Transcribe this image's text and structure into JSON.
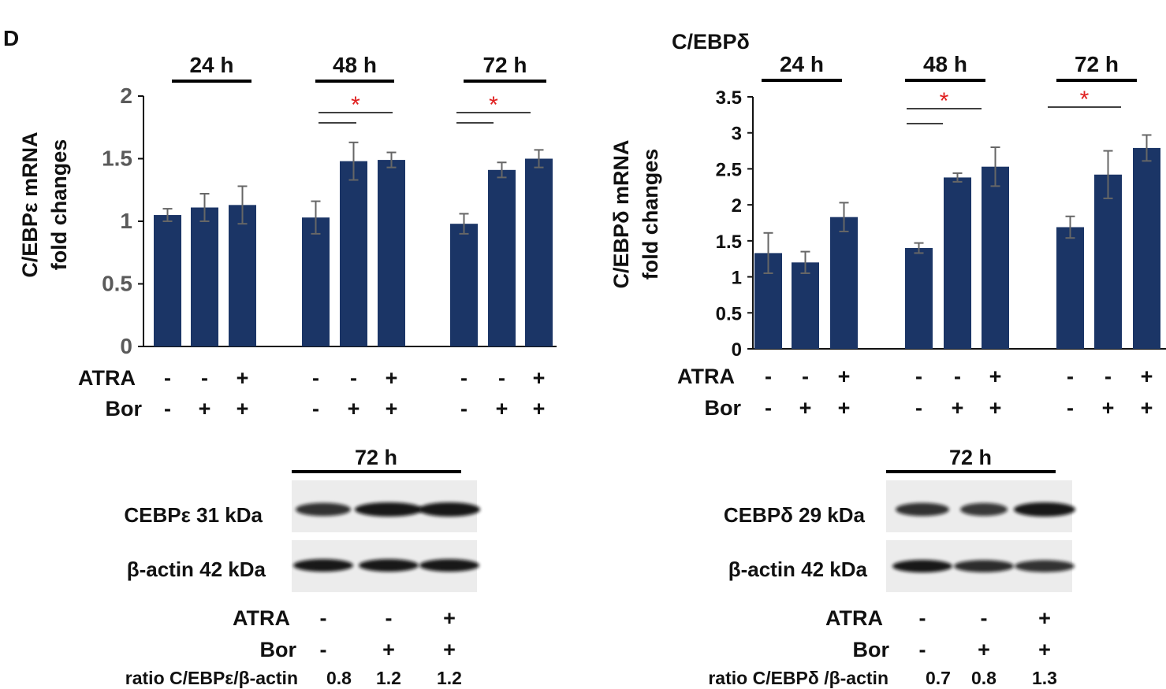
{
  "panel_letter": "D",
  "chart_data": [
    {
      "type": "bar",
      "title": "",
      "ylabel_line1": "C/EBPε mRNA",
      "ylabel_line2": "fold changes",
      "ylim": [
        0,
        2
      ],
      "yticks": [
        "0",
        "0.5",
        "1",
        "1.5",
        "2"
      ],
      "ytick_values": [
        0,
        0.5,
        1,
        1.5,
        2
      ],
      "bar_color": "#1b3566",
      "groups": [
        {
          "label": "24 h",
          "values": [
            1.05,
            1.11,
            1.13
          ],
          "errors": [
            0.05,
            0.11,
            0.15
          ],
          "atra": [
            "-",
            "-",
            "+"
          ],
          "bor": [
            "-",
            "+",
            "+"
          ]
        },
        {
          "label": "48 h",
          "values": [
            1.03,
            1.48,
            1.49
          ],
          "errors": [
            0.13,
            0.15,
            0.06
          ],
          "atra": [
            "-",
            "-",
            "+"
          ],
          "bor": [
            "-",
            "+",
            "+"
          ]
        },
        {
          "label": "72 h",
          "values": [
            0.98,
            1.41,
            1.5
          ],
          "errors": [
            0.08,
            0.06,
            0.07
          ],
          "atra": [
            "-",
            "-",
            "+"
          ],
          "bor": [
            "-",
            "+",
            "+"
          ]
        }
      ],
      "row_labels": {
        "atra": "ATRA",
        "bor": "Bor"
      },
      "significance": "*"
    },
    {
      "type": "bar",
      "title": "C/EBPδ",
      "ylabel_line1": "C/EBPδ mRNA",
      "ylabel_line2": "fold changes",
      "ylim": [
        0,
        3.5
      ],
      "yticks": [
        "0",
        "0.5",
        "1",
        "1.5",
        "2",
        "2.5",
        "3",
        "3.5"
      ],
      "ytick_values": [
        0,
        0.5,
        1,
        1.5,
        2,
        2.5,
        3,
        3.5
      ],
      "bar_color": "#1b3566",
      "groups": [
        {
          "label": "24 h",
          "values": [
            1.33,
            1.2,
            1.83
          ],
          "errors": [
            0.28,
            0.15,
            0.2
          ],
          "atra": [
            "-",
            "-",
            "+"
          ],
          "bor": [
            "-",
            "+",
            "+"
          ]
        },
        {
          "label": "48 h",
          "values": [
            1.4,
            2.38,
            2.53
          ],
          "errors": [
            0.07,
            0.06,
            0.27
          ],
          "atra": [
            "-",
            "-",
            "+"
          ],
          "bor": [
            "-",
            "+",
            "+"
          ]
        },
        {
          "label": "72 h",
          "values": [
            1.69,
            2.42,
            2.79
          ],
          "errors": [
            0.15,
            0.33,
            0.18
          ],
          "atra": [
            "-",
            "-",
            "+"
          ],
          "bor": [
            "-",
            "+",
            "+"
          ]
        }
      ],
      "row_labels": {
        "atra": "ATRA",
        "bor": "Bor"
      },
      "significance": "*"
    }
  ],
  "blots": [
    {
      "time_label": "72 h",
      "band1_label": "CEBPε 31 kDa",
      "band2_label": "β-actin 42 kDa",
      "band1_intensity": [
        0.8,
        1.0,
        1.0
      ],
      "band2_intensity": [
        1.0,
        1.0,
        1.0
      ],
      "atra_label": "ATRA",
      "bor_label": "Bor",
      "atra": [
        "-",
        "-",
        "+"
      ],
      "bor": [
        "-",
        "+",
        "+"
      ],
      "ratio_label": "ratio C/EBPε/β-actin",
      "ratios": [
        "0.8",
        "1.2",
        "1.2"
      ]
    },
    {
      "time_label": "72 h",
      "band1_label": "CEBPδ 29 kDa",
      "band2_label": "β-actin 42 kDa",
      "band1_intensity": [
        0.8,
        0.75,
        1.0
      ],
      "band2_intensity": [
        1.0,
        0.85,
        0.8
      ],
      "atra_label": "ATRA",
      "bor_label": "Bor",
      "atra": [
        "-",
        "-",
        "+"
      ],
      "bor": [
        "-",
        "+",
        "+"
      ],
      "ratio_label": "ratio C/EBPδ /β-actin",
      "ratios": [
        "0.7",
        "0.8",
        "1.3"
      ]
    }
  ]
}
